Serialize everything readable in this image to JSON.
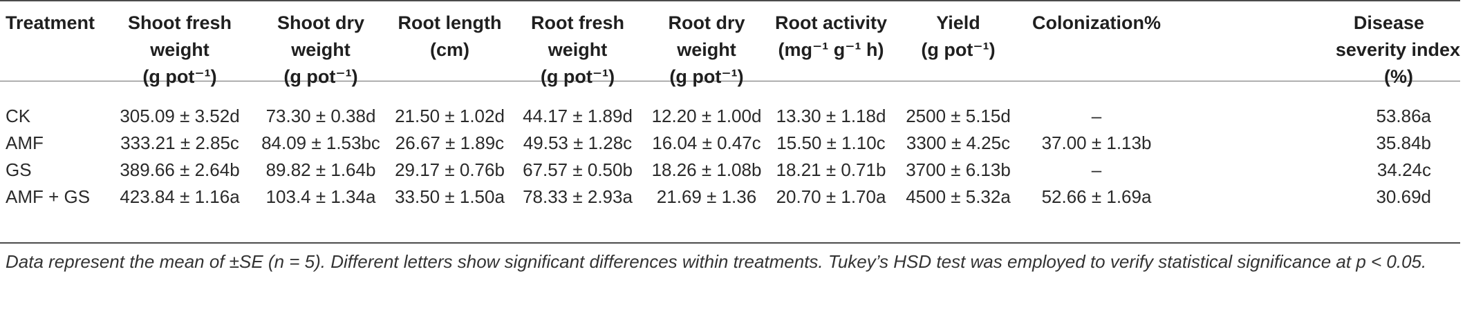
{
  "table": {
    "headers": [
      {
        "l1": "Treatment",
        "l2": "",
        "l3": ""
      },
      {
        "l1": "Shoot fresh",
        "l2": "weight",
        "l3": "(g pot⁻¹)"
      },
      {
        "l1": "Shoot dry",
        "l2": "weight",
        "l3": "(g pot⁻¹)"
      },
      {
        "l1": "Root length",
        "l2": "(cm)",
        "l3": ""
      },
      {
        "l1": "Root fresh",
        "l2": "weight",
        "l3": "(g pot⁻¹)"
      },
      {
        "l1": "Root dry",
        "l2": "weight",
        "l3": "(g pot⁻¹)"
      },
      {
        "l1": "Root activity",
        "l2": "(mg⁻¹ g⁻¹ h)",
        "l3": ""
      },
      {
        "l1": "Yield",
        "l2": "(g pot⁻¹)",
        "l3": ""
      },
      {
        "l1": "Colonization%",
        "l2": "",
        "l3": ""
      },
      {
        "l1": "Disease",
        "l2": "severity index",
        "l3": "(%)"
      }
    ],
    "rows": [
      [
        "CK",
        "305.09 ± 3.52d",
        "73.30 ± 0.38d",
        "21.50 ± 1.02d",
        "44.17 ± 1.89d",
        "12.20 ± 1.00d",
        "13.30 ± 1.18d",
        "2500 ± 5.15d",
        "–",
        "53.86a"
      ],
      [
        "AMF",
        "333.21 ± 2.85c",
        "84.09 ± 1.53bc",
        "26.67 ± 1.89c",
        "49.53 ± 1.28c",
        "16.04 ± 0.47c",
        "15.50 ± 1.10c",
        "3300 ± 4.25c",
        "37.00 ± 1.13b",
        "35.84b"
      ],
      [
        "GS",
        "389.66 ± 2.64b",
        "89.82 ± 1.64b",
        "29.17 ± 0.76b",
        "67.57 ± 0.50b",
        "18.26 ± 1.08b",
        "18.21 ± 0.71b",
        "3700 ± 6.13b",
        "–",
        "34.24c"
      ],
      [
        "AMF + GS",
        "423.84 ± 1.16a",
        "103.4 ± 1.34a",
        "33.50 ± 1.50a",
        "78.33 ± 2.93a",
        "21.69 ± 1.36",
        "20.70 ± 1.70a",
        "4500 ± 5.32a",
        "52.66 ± 1.69a",
        "30.69d"
      ]
    ]
  },
  "footnote": "Data represent the mean of ±SE (n = 5). Different letters show significant differences within treatments. Tukey’s HSD test was employed to verify statistical significance at p < 0.05."
}
